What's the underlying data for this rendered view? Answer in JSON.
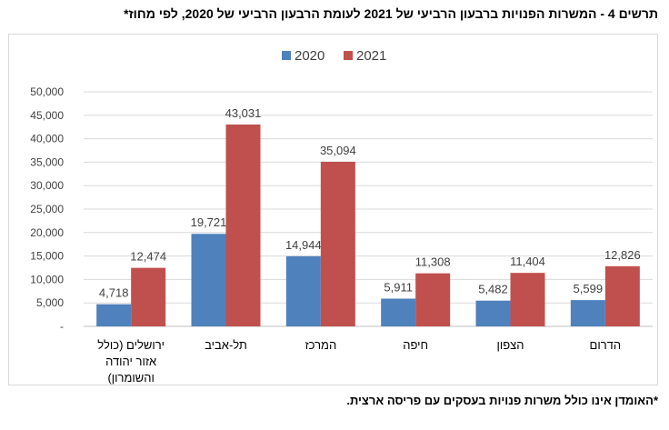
{
  "title": "תרשים 4 - המשרות הפנויות ברבעון הרביעי של 2021 לעומת הרבעון הרביעי של 2020, לפי מחוז*",
  "footnote": "*האומדן אינו כולל משרות פנויות בעסקים עם פריסה ארצית.",
  "chart_data": {
    "type": "bar",
    "title": "",
    "xlabel": "",
    "ylabel": "",
    "categories": [
      [
        "ירושלים (כולל",
        "אזור יהודה",
        "והשומרון)"
      ],
      [
        "תל-אביב"
      ],
      [
        "המרכז"
      ],
      [
        "חיפה"
      ],
      [
        "הצפון"
      ],
      [
        "הדרום"
      ]
    ],
    "series": [
      {
        "name": "2020",
        "color": "#4f81bd",
        "values": [
          4718,
          19721,
          14944,
          5911,
          5482,
          5599
        ],
        "labels": [
          "4,718",
          "19,721",
          "14,944",
          "5,911",
          "5,482",
          "5,599"
        ]
      },
      {
        "name": "2021",
        "color": "#c0504d",
        "values": [
          12474,
          43031,
          35094,
          11308,
          11404,
          12826
        ],
        "labels": [
          "12,474",
          "43,031",
          "35,094",
          "11,308",
          "11,404",
          "12,826"
        ]
      }
    ],
    "ylim": [
      0,
      50000
    ],
    "yticks": [
      0,
      5000,
      10000,
      15000,
      20000,
      25000,
      30000,
      35000,
      40000,
      45000,
      50000
    ],
    "ytick_labels": [
      "-",
      "5,000",
      "10,000",
      "15,000",
      "20,000",
      "25,000",
      "30,000",
      "35,000",
      "40,000",
      "45,000",
      "50,000"
    ],
    "grid": true,
    "legend_position": "top-center"
  }
}
